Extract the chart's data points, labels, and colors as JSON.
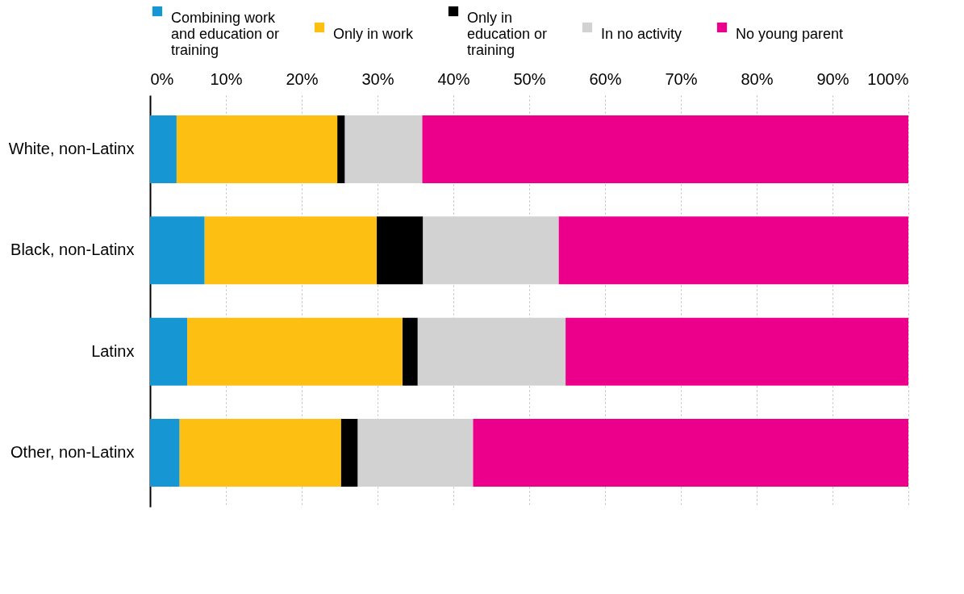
{
  "chart_data": {
    "type": "bar",
    "orientation": "horizontal",
    "stacked": true,
    "categories": [
      "White, non-Latinx",
      "Black, non-Latinx",
      "Latinx",
      "Other, non-Latinx"
    ],
    "series": [
      {
        "name": "Combining work and education or training",
        "color": "#1696d2",
        "values": [
          3.5,
          7.2,
          4.9,
          3.9
        ]
      },
      {
        "name": "Only in work",
        "color": "#fdbf11",
        "values": [
          21.2,
          22.7,
          28.4,
          21.3
        ]
      },
      {
        "name": "Only in education or training",
        "color": "#000000",
        "values": [
          1.0,
          6.1,
          2.0,
          2.2
        ]
      },
      {
        "name": "In no activity",
        "color": "#d2d2d2",
        "values": [
          10.2,
          17.9,
          19.5,
          15.2
        ]
      },
      {
        "name": "No young parent",
        "color": "#ec008b",
        "values": [
          64.1,
          46.1,
          45.2,
          57.4
        ]
      }
    ],
    "xlim": [
      0,
      100
    ],
    "xticks": [
      {
        "value": 0,
        "label": "0%"
      },
      {
        "value": 10,
        "label": "10%"
      },
      {
        "value": 20,
        "label": "20%"
      },
      {
        "value": 30,
        "label": "30%"
      },
      {
        "value": 40,
        "label": "40%"
      },
      {
        "value": 50,
        "label": "50%"
      },
      {
        "value": 60,
        "label": "60%"
      },
      {
        "value": 70,
        "label": "70%"
      },
      {
        "value": 80,
        "label": "80%"
      },
      {
        "value": 90,
        "label": "90%"
      },
      {
        "value": 100,
        "label": "100%"
      }
    ],
    "grid": "x",
    "legend": "top"
  }
}
